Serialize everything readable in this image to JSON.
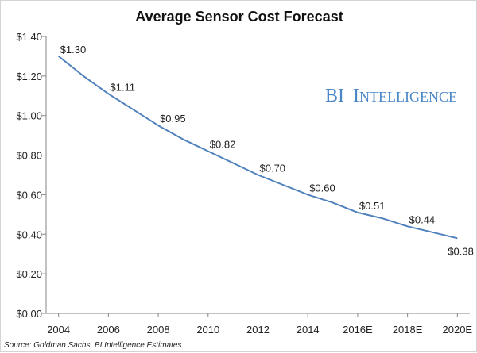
{
  "chart_data": {
    "type": "line",
    "title": "Average Sensor Cost Forecast",
    "xlabel": "",
    "ylabel": "",
    "x": [
      2004,
      2005,
      2006,
      2007,
      2008,
      2009,
      2010,
      2011,
      2012,
      2013,
      2014,
      2015,
      2016,
      2017,
      2018,
      2019,
      2020
    ],
    "x_tick_labels": [
      "2004",
      "2006",
      "2008",
      "2010",
      "2012",
      "2014",
      "2016E",
      "2018E",
      "2020E"
    ],
    "x_tick_values": [
      2004,
      2006,
      2008,
      2010,
      2012,
      2014,
      2016,
      2018,
      2020
    ],
    "xlim": [
      2003.5,
      2020.5
    ],
    "y_tick_labels": [
      "$0.00",
      "$0.20",
      "$0.40",
      "$0.60",
      "$0.80",
      "$1.00",
      "$1.20",
      "$1.40"
    ],
    "y_tick_values": [
      0,
      0.2,
      0.4,
      0.6,
      0.8,
      1.0,
      1.2,
      1.4
    ],
    "ylim": [
      0,
      1.4
    ],
    "grid": false,
    "legend": "none",
    "series": [
      {
        "values": [
          1.3,
          1.2,
          1.11,
          1.03,
          0.95,
          0.88,
          0.82,
          0.76,
          0.7,
          0.65,
          0.6,
          0.56,
          0.51,
          0.48,
          0.44,
          0.41,
          0.38
        ],
        "color": "#4f81bd"
      }
    ],
    "data_labels": [
      {
        "x": 2004,
        "text": "$1.30"
      },
      {
        "x": 2006,
        "text": "$1.11"
      },
      {
        "x": 2008,
        "text": "$0.95"
      },
      {
        "x": 2010,
        "text": "$0.82"
      },
      {
        "x": 2012,
        "text": "$0.70"
      },
      {
        "x": 2014,
        "text": "$0.60"
      },
      {
        "x": 2016,
        "text": "$0.51"
      },
      {
        "x": 2018,
        "text": "$0.44"
      },
      {
        "x": 2020,
        "text": "$0.38"
      }
    ],
    "source": "Source: Goldman Sachs, BI Intelligence Estimates",
    "watermark": {
      "first": "BI",
      "rest": "Intelligence",
      "color": "#4a86c8"
    }
  }
}
